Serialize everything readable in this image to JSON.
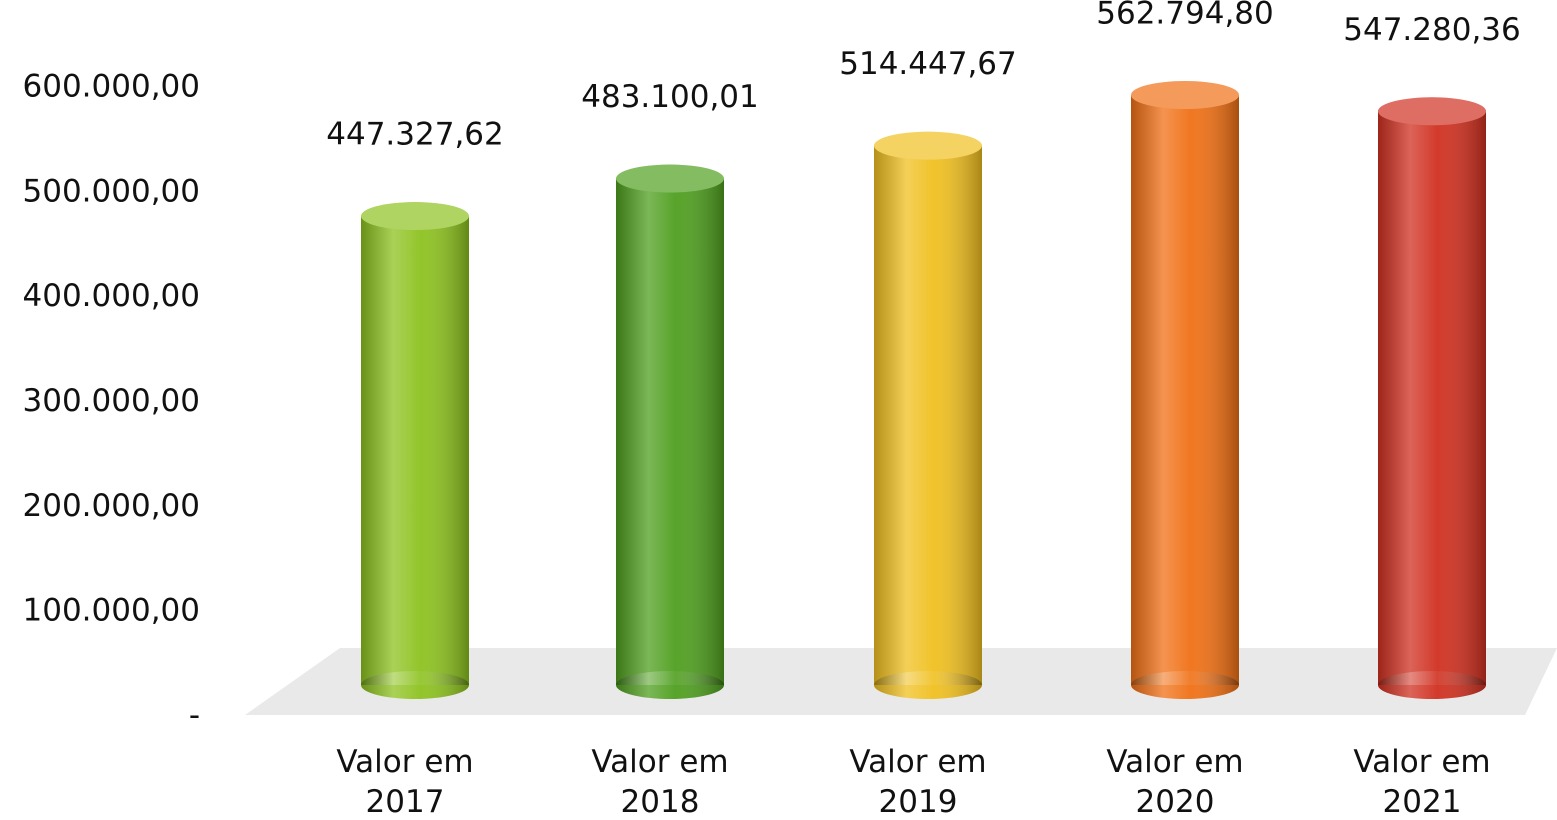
{
  "chart_data": {
    "type": "bar",
    "categories": [
      "Valor em 2017",
      "Valor em 2018",
      "Valor em 2019",
      "Valor em 2020",
      "Valor em 2021"
    ],
    "values": [
      447327.62,
      483100.01,
      514447.67,
      562794.8,
      547280.36
    ],
    "value_labels": [
      "447.327,62",
      "483.100,01",
      "514.447,67",
      "562.794,80",
      "547.280,36"
    ],
    "colors": [
      "#8dc21f",
      "#4f9f1f",
      "#f0c020",
      "#f07015",
      "#d03020"
    ],
    "ylim": [
      0,
      600000
    ],
    "yticks": [
      {
        "value": 0,
        "label": "-"
      },
      {
        "value": 100000,
        "label": "100.000,00"
      },
      {
        "value": 200000,
        "label": "200.000,00"
      },
      {
        "value": 300000,
        "label": "300.000,00"
      },
      {
        "value": 400000,
        "label": "400.000,00"
      },
      {
        "value": 500000,
        "label": "500.000,00"
      },
      {
        "value": 600000,
        "label": "600.000,00"
      }
    ],
    "grid": false
  }
}
